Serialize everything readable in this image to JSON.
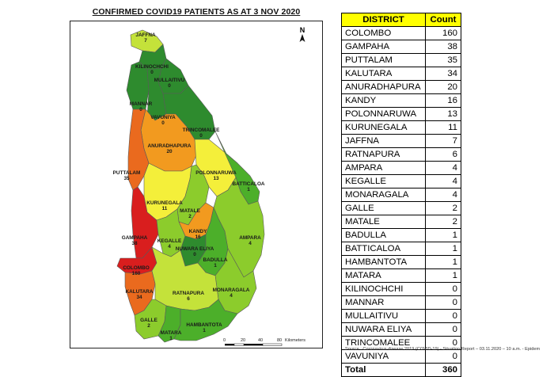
{
  "map": {
    "title": "CONFIRMED COVID19 PATIENTS AS AT 3 NOV 2020",
    "north_label": "N",
    "scale": {
      "ticks": [
        "0",
        "20",
        "40",
        "80"
      ],
      "unit": "Kilometers"
    },
    "colors": {
      "sea": "#ffffff",
      "dark_green": "#2e8b2e",
      "mid_green": "#4caf2a",
      "light_green": "#8ccc2c",
      "yellow_green": "#c4e23a",
      "yellow": "#f4ef3a",
      "orange": "#f29a1f",
      "orange_red": "#ea6a1e",
      "red": "#d91e1e",
      "border": "#5a5a5a"
    },
    "districts": [
      {
        "name": "JAFFNA",
        "count": "7",
        "color": "yellow_green"
      },
      {
        "name": "KILINOCHCHI",
        "count": "0",
        "color": "dark_green"
      },
      {
        "name": "MULLAITIVU",
        "count": "0",
        "color": "dark_green"
      },
      {
        "name": "MANNAR",
        "count": "0",
        "color": "dark_green"
      },
      {
        "name": "VAVUNIYA",
        "count": "0",
        "color": "dark_green"
      },
      {
        "name": "TRINCOMALEE",
        "count": "0",
        "color": "dark_green"
      },
      {
        "name": "ANURADHAPURA",
        "count": "20",
        "color": "orange"
      },
      {
        "name": "PUTTALAM",
        "count": "35",
        "color": "orange_red"
      },
      {
        "name": "POLONNARUWA",
        "count": "13",
        "color": "yellow"
      },
      {
        "name": "BATTICALOA",
        "count": "1",
        "color": "mid_green"
      },
      {
        "name": "KURUNEGALA",
        "count": "11",
        "color": "yellow"
      },
      {
        "name": "MATALE",
        "count": "2",
        "color": "light_green"
      },
      {
        "name": "KANDY",
        "count": "16",
        "color": "orange"
      },
      {
        "name": "AMPARA",
        "count": "4",
        "color": "light_green"
      },
      {
        "name": "GAMPAHA",
        "count": "38",
        "color": "red"
      },
      {
        "name": "KEGALLE",
        "count": "4",
        "color": "light_green"
      },
      {
        "name": "NUWARA ELIYA",
        "count": "0",
        "color": "dark_green"
      },
      {
        "name": "BADULLA",
        "count": "1",
        "color": "mid_green"
      },
      {
        "name": "COLOMBO",
        "count": "160",
        "color": "red"
      },
      {
        "name": "MONARAGALA",
        "count": "4",
        "color": "light_green"
      },
      {
        "name": "KALUTARA",
        "count": "34",
        "color": "orange_red"
      },
      {
        "name": "RATNAPURA",
        "count": "6",
        "color": "yellow_green"
      },
      {
        "name": "GALLE",
        "count": "2",
        "color": "light_green"
      },
      {
        "name": "MATARA",
        "count": "1",
        "color": "mid_green"
      },
      {
        "name": "HAMBANTOTA",
        "count": "1",
        "color": "mid_green"
      }
    ]
  },
  "table": {
    "headers": [
      "DISTRICT",
      "Count"
    ],
    "rows": [
      [
        "COLOMBO",
        "160"
      ],
      [
        "GAMPAHA",
        "38"
      ],
      [
        "PUTTALAM",
        "35"
      ],
      [
        "KALUTARA",
        "34"
      ],
      [
        "ANURADHAPURA",
        "20"
      ],
      [
        "KANDY",
        "16"
      ],
      [
        "POLONNARUWA",
        "13"
      ],
      [
        "KURUNEGALA",
        "11"
      ],
      [
        "JAFFNA",
        "7"
      ],
      [
        "RATNAPURA",
        "6"
      ],
      [
        "AMPARA",
        "4"
      ],
      [
        "KEGALLE",
        "4"
      ],
      [
        "MONARAGALA",
        "4"
      ],
      [
        "GALLE",
        "2"
      ],
      [
        "MATALE",
        "2"
      ],
      [
        "BADULLA",
        "1"
      ],
      [
        "BATTICALOA",
        "1"
      ],
      [
        "HAMBANTOTA",
        "1"
      ],
      [
        "MATARA",
        "1"
      ],
      [
        "KILINOCHCHI",
        "0"
      ],
      [
        "MANNAR",
        "0"
      ],
      [
        "MULLAITIVU",
        "0"
      ],
      [
        "NUWARA ELIYA",
        "0"
      ],
      [
        "TRINCOMALEE",
        "0"
      ],
      [
        "VAVUNIYA",
        "0"
      ]
    ],
    "total": [
      "Total",
      "360"
    ]
  },
  "source_note": "Source : Coronavirus disease 2019 (COVID-19) - Situation Report – 03.11.2020 – 10 a.m. - Epidem"
}
